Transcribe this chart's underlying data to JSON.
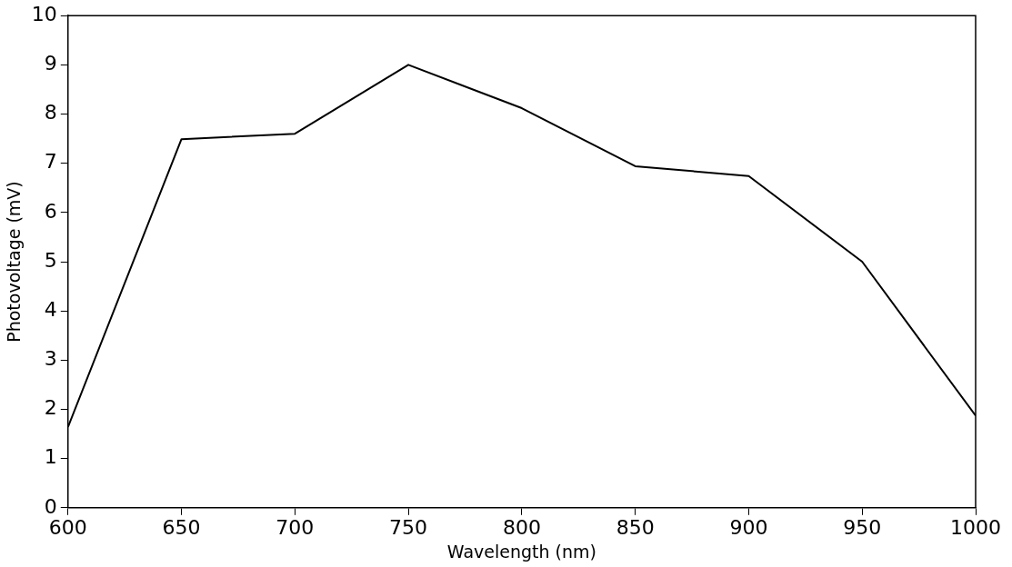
{
  "chart_data": {
    "type": "line",
    "xlabel": "Wavelength (nm)",
    "ylabel": "Photovoltage (mV)",
    "x": [
      600,
      650,
      700,
      750,
      800,
      850,
      900,
      950,
      1000
    ],
    "series": [
      {
        "color": "#000000",
        "values": [
          1.64,
          7.49,
          7.6,
          9.0,
          8.12,
          6.94,
          6.74,
          5.0,
          1.87
        ]
      }
    ],
    "xlim": [
      600,
      1000
    ],
    "xticks": [
      600,
      650,
      700,
      750,
      800,
      850,
      900,
      950,
      1000
    ],
    "ylim": [
      0,
      10
    ],
    "yticks": [
      0,
      1,
      2,
      3,
      4,
      5,
      6,
      7,
      8,
      9,
      10
    ],
    "grid": false,
    "legend": false,
    "marker": "none",
    "line_style": "solid"
  }
}
